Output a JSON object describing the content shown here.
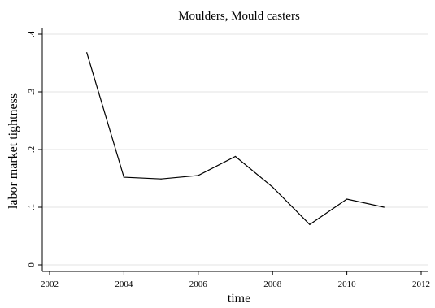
{
  "chart_data": {
    "type": "line",
    "title": "Moulders, Mould casters",
    "xlabel": "time",
    "ylabel": "labor market tightness",
    "x": [
      2003,
      2004,
      2005,
      2006,
      2007,
      2008,
      2009,
      2010,
      2011
    ],
    "series": [
      {
        "values": [
          0.368,
          0.152,
          0.149,
          0.155,
          0.188,
          0.135,
          0.07,
          0.114,
          0.1
        ]
      }
    ],
    "xlim": [
      2002,
      2012
    ],
    "ylim": [
      0,
      0.4
    ],
    "xticks": [
      2002,
      2004,
      2006,
      2008,
      2010,
      2012
    ],
    "xtick_labels": [
      "2002",
      "2004",
      "2006",
      "2008",
      "2010",
      "2012"
    ],
    "yticks": [
      0,
      0.1,
      0.2,
      0.3,
      0.4
    ],
    "ytick_labels": [
      "0",
      ".1",
      ".2",
      ".3",
      ".4"
    ],
    "grid": true,
    "grid_axis": "y",
    "line_color": "#000000",
    "grid_color": "#e3e3e3"
  }
}
